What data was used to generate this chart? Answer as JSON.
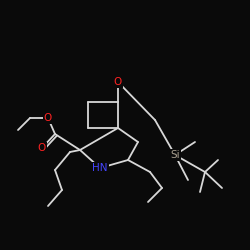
{
  "bg_color": "#0a0a0a",
  "bond_color": "#d8d8d8",
  "atom_colors": {
    "N": "#4444ff",
    "O": "#ff2222",
    "Si": "#aaa090"
  },
  "bond_width": 1.3,
  "fig_size": [
    2.5,
    2.5
  ],
  "dpi": 100,
  "xlim": [
    0,
    250
  ],
  "ylim": [
    0,
    250
  ]
}
